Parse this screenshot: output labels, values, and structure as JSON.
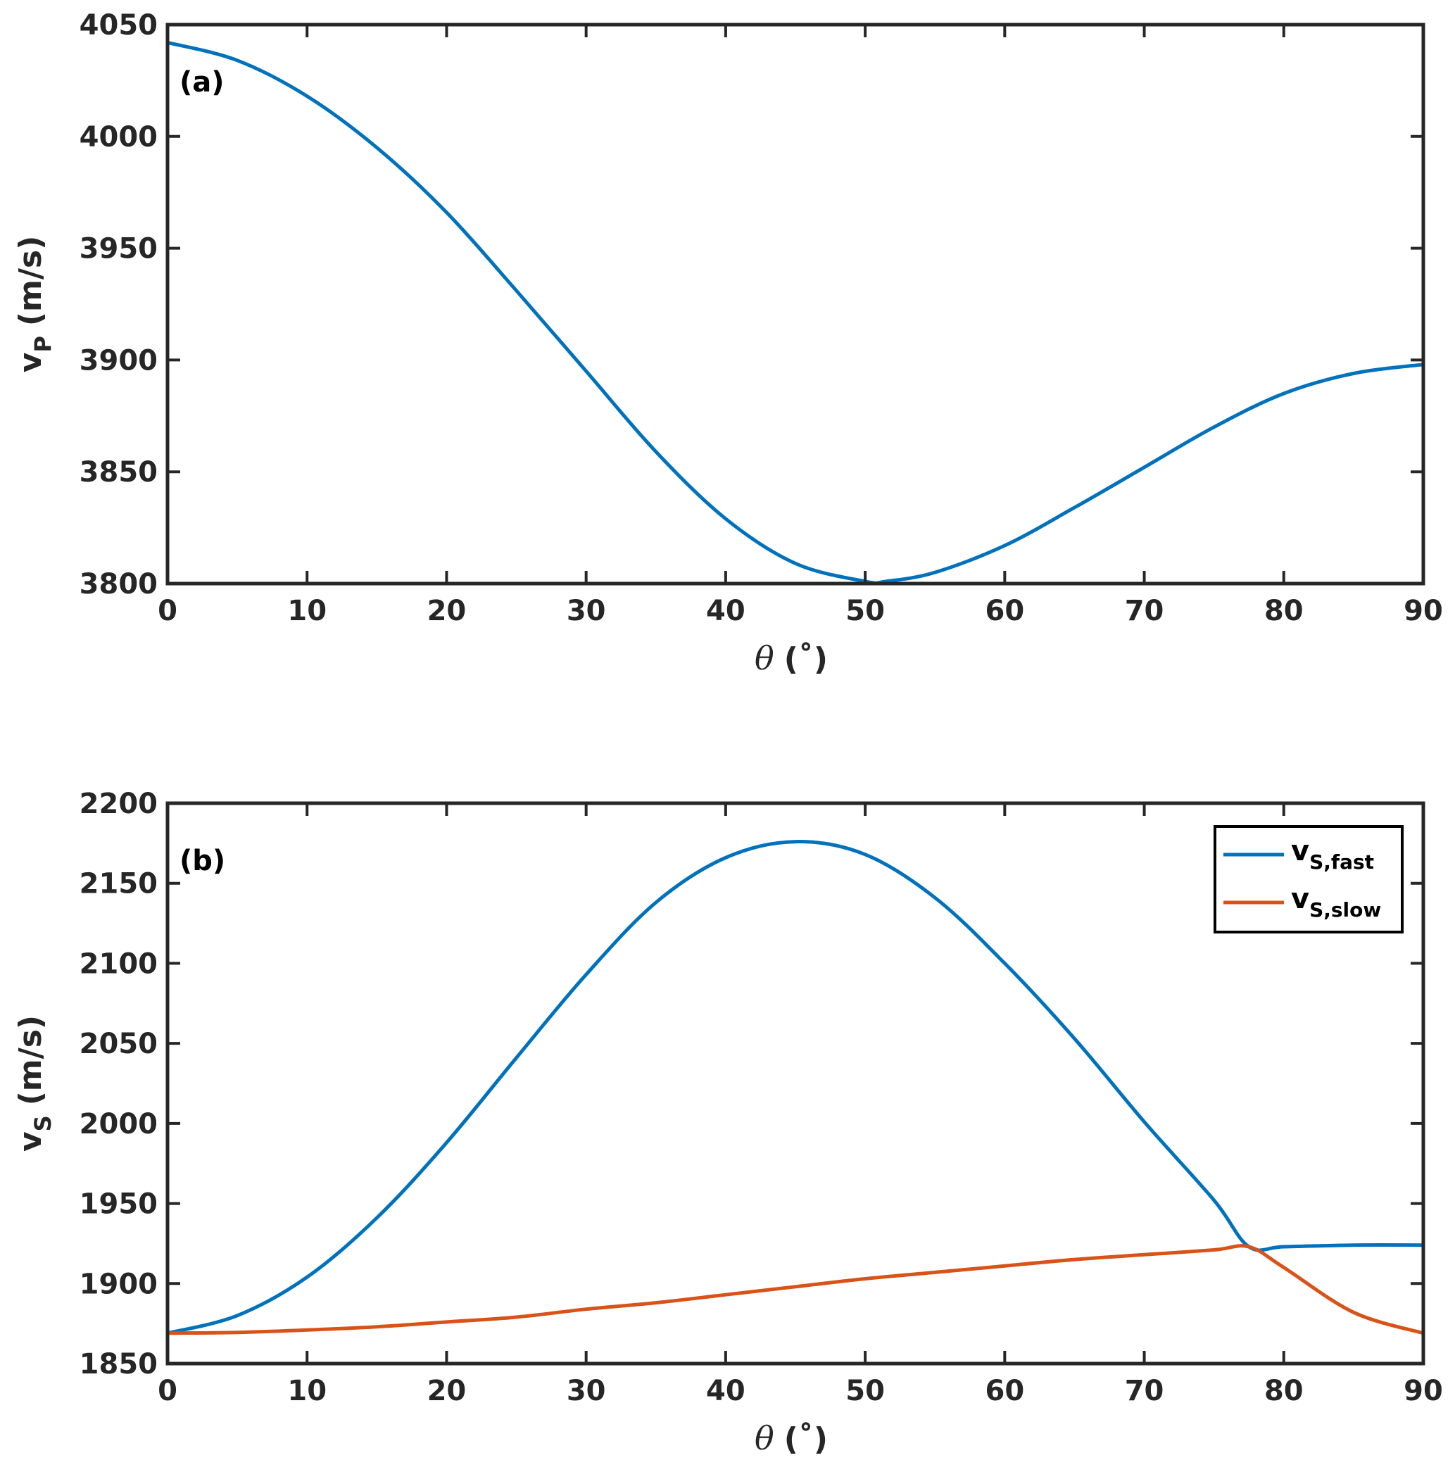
{
  "chart_data": [
    {
      "type": "line",
      "panel_label": "(a)",
      "xlabel_symbol": "θ",
      "xlabel_unit": "(˚)",
      "ylabel_main": "v",
      "ylabel_sub": "P",
      "ylabel_unit": "(m/s)",
      "xlim": [
        0,
        90
      ],
      "ylim": [
        3800,
        4050
      ],
      "xticks": [
        "0",
        "10",
        "20",
        "30",
        "40",
        "50",
        "60",
        "70",
        "80",
        "90"
      ],
      "yticks": [
        "3800",
        "3850",
        "3900",
        "3950",
        "4000",
        "4050"
      ],
      "x": [
        0,
        5,
        10,
        15,
        20,
        25,
        30,
        35,
        40,
        45,
        50,
        51.5,
        55,
        60,
        65,
        70,
        75,
        80,
        85,
        90
      ],
      "series": [
        {
          "color": "#0072BD",
          "values": [
            4042,
            4034,
            4018,
            3995,
            3966,
            3931,
            3895,
            3859,
            3829,
            3809,
            3801,
            3801,
            3805,
            3817,
            3834,
            3852,
            3870,
            3885,
            3894,
            3898
          ]
        }
      ],
      "grid": false,
      "legend": null
    },
    {
      "type": "line",
      "panel_label": "(b)",
      "xlabel_symbol": "θ",
      "xlabel_unit": "(˚)",
      "ylabel_main": "v",
      "ylabel_sub": "S",
      "ylabel_unit": "(m/s)",
      "xlim": [
        0,
        90
      ],
      "ylim": [
        1850,
        2200
      ],
      "xticks": [
        "0",
        "10",
        "20",
        "30",
        "40",
        "50",
        "60",
        "70",
        "80",
        "90"
      ],
      "yticks": [
        "1850",
        "1900",
        "1950",
        "2000",
        "2050",
        "2100",
        "2150",
        "2200"
      ],
      "x": [
        0,
        5,
        10,
        15,
        20,
        25,
        30,
        35,
        40,
        45,
        50,
        55,
        60,
        65,
        70,
        75,
        77.5,
        80,
        85,
        90
      ],
      "series": [
        {
          "name_main": "v",
          "name_sub": "S,fast",
          "color": "#0072BD",
          "values": [
            1869,
            1880,
            1904,
            1941,
            1988,
            2041,
            2093,
            2138,
            2166,
            2176,
            2168,
            2141,
            2100,
            2053,
            2001,
            1952,
            1923,
            1923,
            1924,
            1924
          ]
        },
        {
          "name_main": "v",
          "name_sub": "S,slow",
          "color": "#D95319",
          "values": [
            1869,
            1869.5,
            1871,
            1873,
            1876,
            1879,
            1884,
            1888,
            1893,
            1898,
            1903,
            1907,
            1911,
            1915,
            1918,
            1921,
            1923,
            1910,
            1882,
            1869
          ]
        }
      ],
      "grid": false,
      "legend": "top-right"
    }
  ]
}
